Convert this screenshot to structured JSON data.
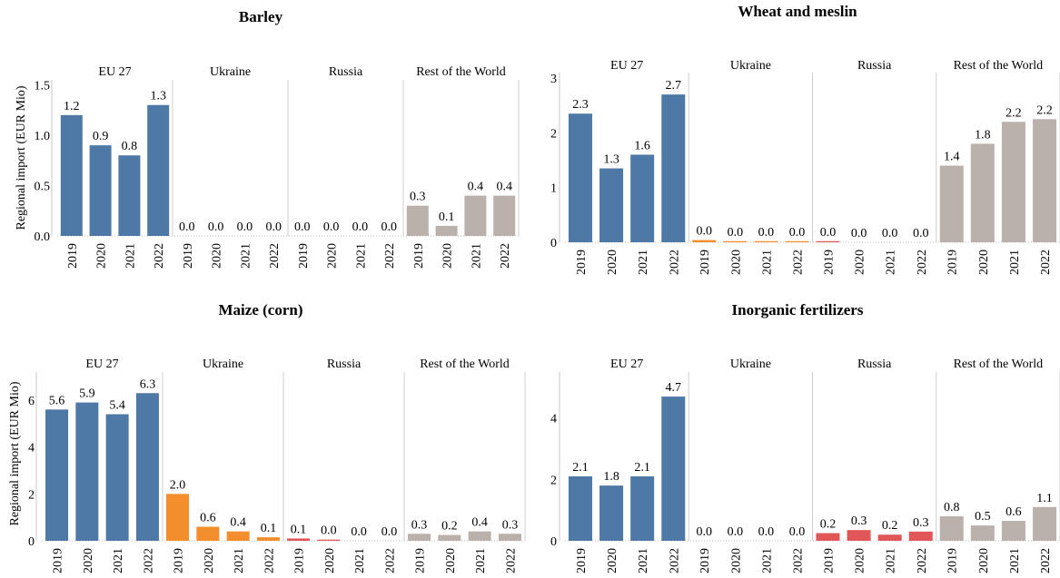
{
  "colors": {
    "EU 27": "#4e79a7",
    "Ukraine": "#f28e2b",
    "Russia": "#e15759",
    "Rest of the World": "#bab0ac",
    "divider": "#cfcfcf",
    "axis": "#c8c8c8"
  },
  "chart_data": [
    {
      "type": "bar",
      "title": "Barley",
      "ylabel": "Regional import (EUR Mio)",
      "ylim": [
        0,
        1.55
      ],
      "yticks": [
        0.0,
        0.5,
        1.0,
        1.5
      ],
      "ytick_labels": [
        "0.0",
        "0.5",
        "1.0",
        "1.5"
      ],
      "facets": [
        "EU 27",
        "Ukraine",
        "Russia",
        "Rest of the World"
      ],
      "categories": [
        "2019",
        "2020",
        "2021",
        "2022"
      ],
      "series": [
        {
          "facet": "EU 27",
          "values": [
            1.2,
            0.9,
            0.8,
            1.3
          ],
          "labels": [
            "1.2",
            "0.9",
            "0.8",
            "1.3"
          ]
        },
        {
          "facet": "Ukraine",
          "values": [
            0.0,
            0.0,
            0.0,
            0.0
          ],
          "labels": [
            "0.0",
            "0.0",
            "0.0",
            "0.0"
          ]
        },
        {
          "facet": "Russia",
          "values": [
            0.0,
            0.0,
            0.0,
            0.0
          ],
          "labels": [
            "0.0",
            "0.0",
            "0.0",
            "0.0"
          ]
        },
        {
          "facet": "Rest of the World",
          "values": [
            0.3,
            0.1,
            0.4,
            0.4
          ],
          "labels": [
            "0.3",
            "0.1",
            "0.4",
            "0.4"
          ]
        }
      ]
    },
    {
      "type": "bar",
      "title": "Wheat and meslin",
      "ylabel": "",
      "ylim": [
        0,
        3.1
      ],
      "yticks": [
        0,
        1,
        2,
        3
      ],
      "ytick_labels": [
        "0",
        "1",
        "2",
        "3"
      ],
      "facets": [
        "EU 27",
        "Ukraine",
        "Russia",
        "Rest of the World"
      ],
      "categories": [
        "2019",
        "2020",
        "2021",
        "2022"
      ],
      "series": [
        {
          "facet": "EU 27",
          "values": [
            2.35,
            1.35,
            1.6,
            2.7
          ],
          "labels": [
            "2.3",
            "1.3",
            "1.6",
            "2.7"
          ]
        },
        {
          "facet": "Ukraine",
          "values": [
            0.04,
            0.02,
            0.02,
            0.02
          ],
          "labels": [
            "0.0",
            "0.0",
            "0.0",
            "0.0"
          ]
        },
        {
          "facet": "Russia",
          "values": [
            0.02,
            0.0,
            0.0,
            0.0
          ],
          "labels": [
            "0.0",
            "0.0",
            "0.0",
            "0.0"
          ]
        },
        {
          "facet": "Rest of the World",
          "values": [
            1.4,
            1.8,
            2.2,
            2.25
          ],
          "labels": [
            "1.4",
            "1.8",
            "2.2",
            "2.2"
          ]
        }
      ]
    },
    {
      "type": "bar",
      "title": "Maize (corn)",
      "ylabel": "Regional import (EUR Mio)",
      "ylim": [
        0,
        7.2
      ],
      "yticks": [
        0,
        2,
        4,
        6
      ],
      "ytick_labels": [
        "0",
        "2",
        "4",
        "6"
      ],
      "facets": [
        "EU 27",
        "Ukraine",
        "Russia",
        "Rest of the World"
      ],
      "categories": [
        "2019",
        "2020",
        "2021",
        "2022"
      ],
      "series": [
        {
          "facet": "EU 27",
          "values": [
            5.6,
            5.9,
            5.4,
            6.3
          ],
          "labels": [
            "5.6",
            "5.9",
            "5.4",
            "6.3"
          ]
        },
        {
          "facet": "Ukraine",
          "values": [
            2.0,
            0.6,
            0.4,
            0.15
          ],
          "labels": [
            "2.0",
            "0.6",
            "0.4",
            "0.1"
          ]
        },
        {
          "facet": "Russia",
          "values": [
            0.1,
            0.05,
            0.0,
            0.0
          ],
          "labels": [
            "0.1",
            "0.0",
            "0.0",
            "0.0"
          ]
        },
        {
          "facet": "Rest of the World",
          "values": [
            0.3,
            0.25,
            0.4,
            0.3
          ],
          "labels": [
            "0.3",
            "0.2",
            "0.4",
            "0.3"
          ]
        }
      ]
    },
    {
      "type": "bar",
      "title": "Inorganic fertilizers",
      "ylabel": "",
      "ylim": [
        0,
        5.5
      ],
      "yticks": [
        0,
        2,
        4
      ],
      "ytick_labels": [
        "0",
        "2",
        "4"
      ],
      "facets": [
        "EU 27",
        "Ukraine",
        "Russia",
        "Rest of the World"
      ],
      "categories": [
        "2019",
        "2020",
        "2021",
        "2022"
      ],
      "series": [
        {
          "facet": "EU 27",
          "values": [
            2.1,
            1.8,
            2.1,
            4.7
          ],
          "labels": [
            "2.1",
            "1.8",
            "2.1",
            "4.7"
          ]
        },
        {
          "facet": "Ukraine",
          "values": [
            0.0,
            0.0,
            0.0,
            0.0
          ],
          "labels": [
            "0.0",
            "0.0",
            "0.0",
            "0.0"
          ]
        },
        {
          "facet": "Russia",
          "values": [
            0.25,
            0.35,
            0.2,
            0.3
          ],
          "labels": [
            "0.2",
            "0.3",
            "0.2",
            "0.3"
          ]
        },
        {
          "facet": "Rest of the World",
          "values": [
            0.8,
            0.5,
            0.65,
            1.1
          ],
          "labels": [
            "0.8",
            "0.5",
            "0.6",
            "1.1"
          ]
        }
      ]
    }
  ]
}
